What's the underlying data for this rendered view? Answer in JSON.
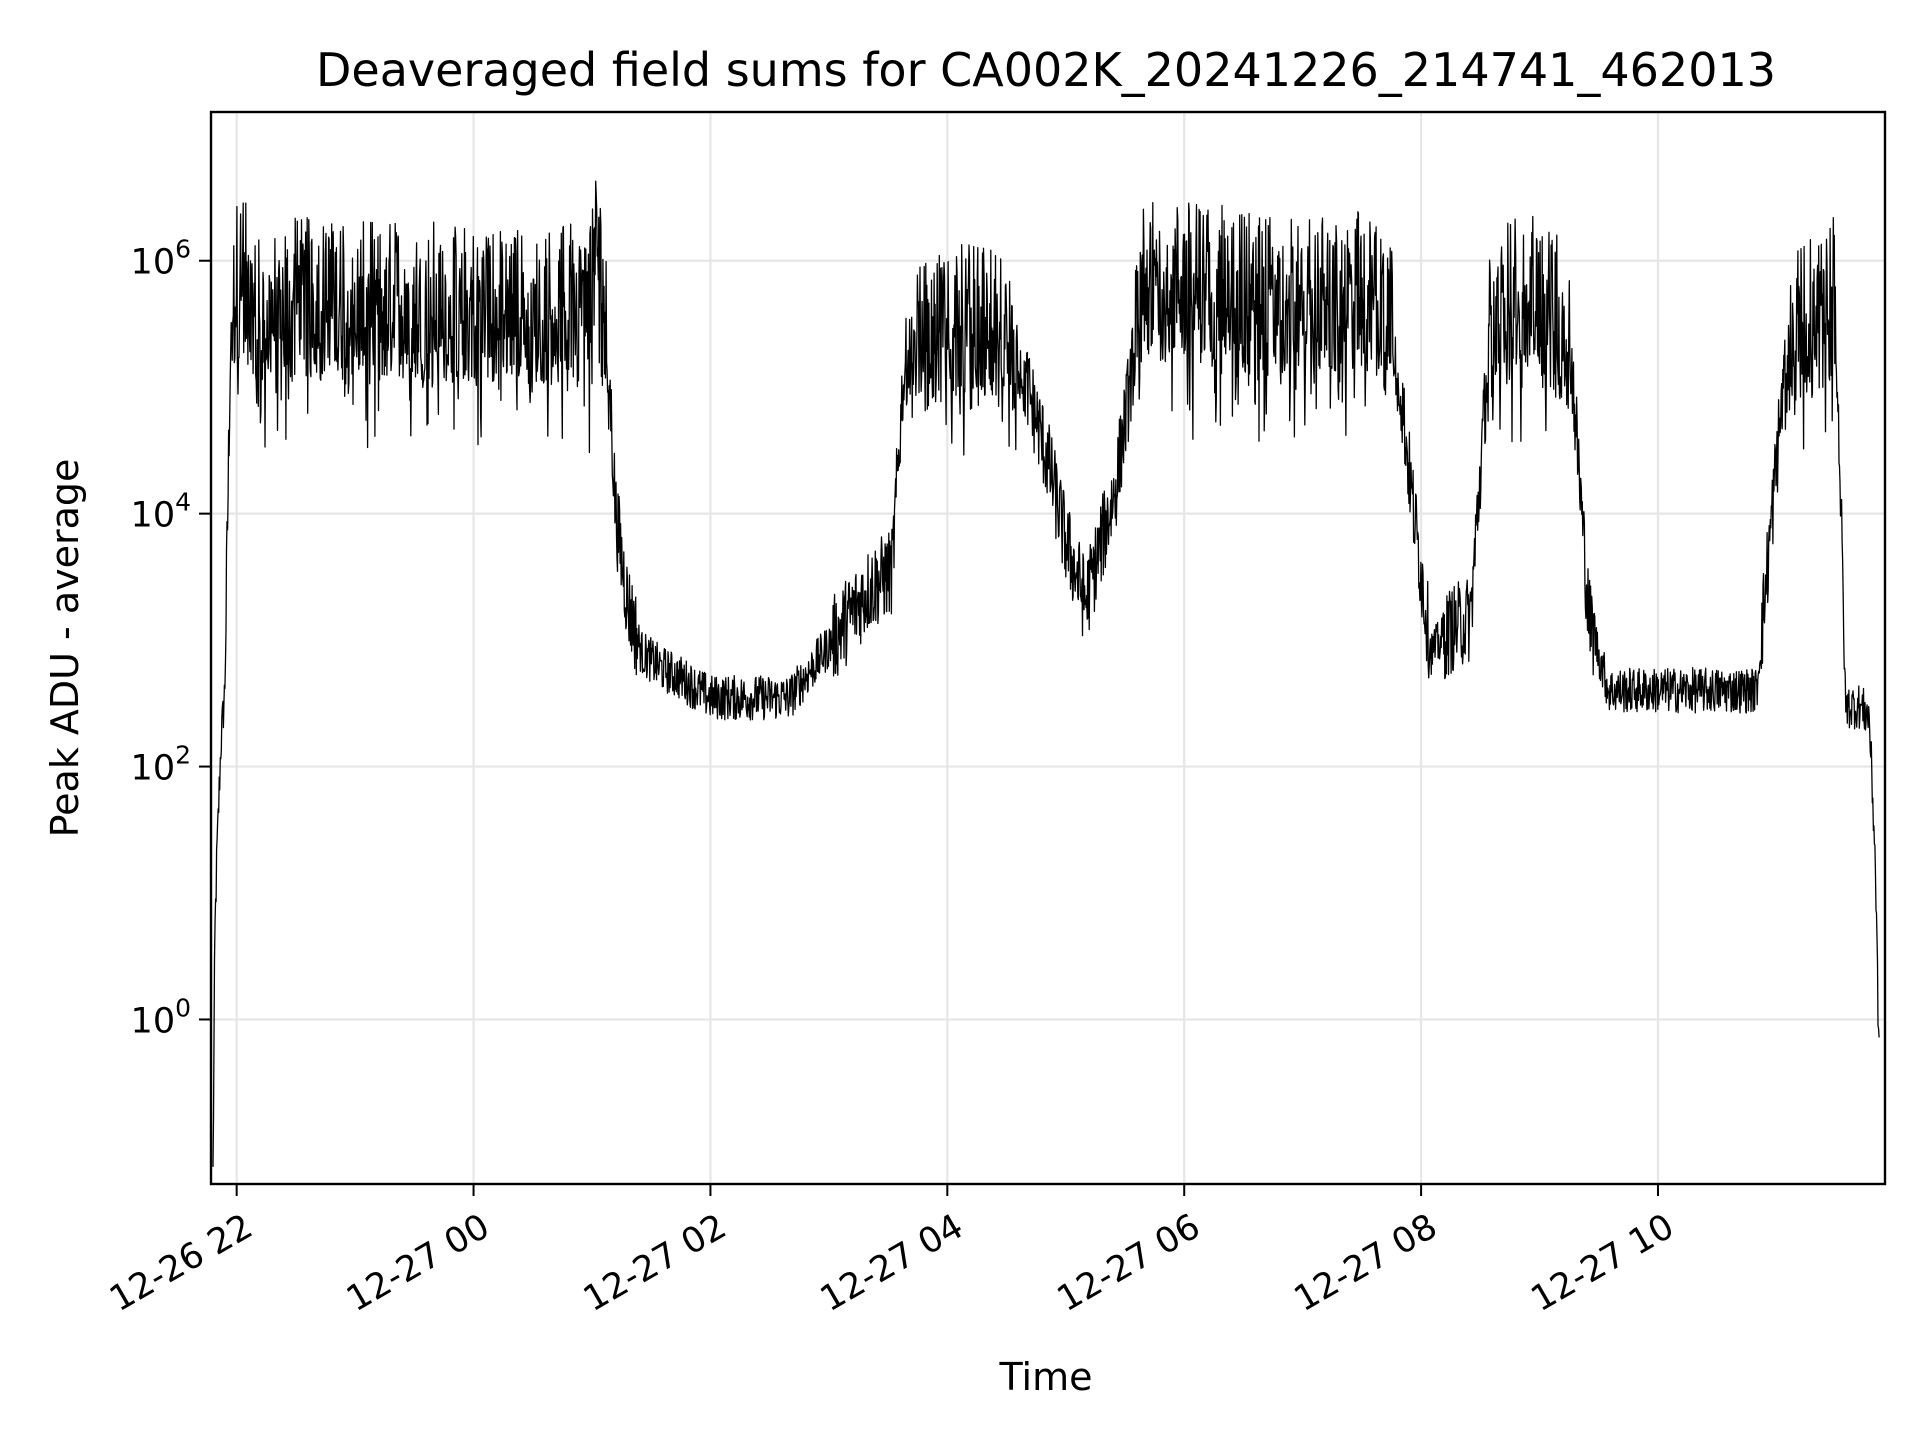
{
  "chart_data": {
    "type": "line",
    "title": "Deaveraged field sums for CA002K_20241226_214741_462013",
    "xlabel": "Time",
    "ylabel": "Peak ADU - average",
    "yscale": "log",
    "grid": true,
    "line_color": "#000000",
    "xlim": [
      "2024-12-26 21:47",
      "2024-12-27 11:55"
    ],
    "ylim": [
      0.05,
      15000000
    ],
    "x_ticks": [
      {
        "value": "2024-12-26 22:00",
        "label": "12-26 22"
      },
      {
        "value": "2024-12-27 00:00",
        "label": "12-27 00"
      },
      {
        "value": "2024-12-27 02:00",
        "label": "12-27 02"
      },
      {
        "value": "2024-12-27 04:00",
        "label": "12-27 04"
      },
      {
        "value": "2024-12-27 06:00",
        "label": "12-27 06"
      },
      {
        "value": "2024-12-27 08:00",
        "label": "12-27 08"
      },
      {
        "value": "2024-12-27 10:00",
        "label": "12-27 10"
      }
    ],
    "y_ticks": [
      {
        "value": 1,
        "base": "10",
        "exp": "0"
      },
      {
        "value": 100,
        "base": "10",
        "exp": "2"
      },
      {
        "value": 10000,
        "base": "10",
        "exp": "4"
      },
      {
        "value": 1000000,
        "base": "10",
        "exp": "6"
      }
    ],
    "series": [
      {
        "x": [
          "2024-12-26 21:48",
          "2024-12-26 21:49",
          "2024-12-26 21:50",
          "2024-12-26 21:52",
          "2024-12-26 21:54",
          "2024-12-26 21:57",
          "2024-12-26 22:00",
          "2024-12-26 22:03",
          "2024-12-26 22:07",
          "2024-12-26 22:12",
          "2024-12-26 22:18",
          "2024-12-26 22:24",
          "2024-12-26 22:30",
          "2024-12-26 22:45",
          "2024-12-26 23:00",
          "2024-12-26 23:30",
          "2024-12-27 00:00",
          "2024-12-27 00:30",
          "2024-12-27 00:55",
          "2024-12-27 01:03",
          "2024-12-27 01:07",
          "2024-12-27 01:12",
          "2024-12-27 01:18",
          "2024-12-27 01:25",
          "2024-12-27 01:35",
          "2024-12-27 01:45",
          "2024-12-27 02:00",
          "2024-12-27 02:20",
          "2024-12-27 02:40",
          "2024-12-27 03:00",
          "2024-12-27 03:20",
          "2024-12-27 03:32",
          "2024-12-27 03:38",
          "2024-12-27 03:50",
          "2024-12-27 04:05",
          "2024-12-27 04:20",
          "2024-12-27 04:35",
          "2024-12-27 04:50",
          "2024-12-27 05:00",
          "2024-12-27 05:10",
          "2024-12-27 05:25",
          "2024-12-27 05:40",
          "2024-12-27 06:00",
          "2024-12-27 06:30",
          "2024-12-27 07:00",
          "2024-12-27 07:30",
          "2024-12-27 07:45",
          "2024-12-27 07:55",
          "2024-12-27 08:05",
          "2024-12-27 08:15",
          "2024-12-27 08:25",
          "2024-12-27 08:35",
          "2024-12-27 08:50",
          "2024-12-27 09:05",
          "2024-12-27 09:15",
          "2024-12-27 09:25",
          "2024-12-27 09:35",
          "2024-12-27 09:45",
          "2024-12-27 09:50",
          "2024-12-27 10:00",
          "2024-12-27 10:10",
          "2024-12-27 10:18",
          "2024-12-27 10:30",
          "2024-12-27 10:40",
          "2024-12-27 10:50",
          "2024-12-27 11:05",
          "2024-12-27 11:15",
          "2024-12-27 11:20",
          "2024-12-27 11:25",
          "2024-12-27 11:30",
          "2024-12-27 11:35",
          "2024-12-27 11:42",
          "2024-12-27 11:47",
          "2024-12-27 11:50",
          "2024-12-27 11:52"
        ],
        "y": [
          0.06,
          5,
          20,
          150,
          400,
          300000,
          700000,
          900000,
          400000,
          350000,
          400000,
          450000,
          500000,
          500000,
          450000,
          500000,
          450000,
          450000,
          450000,
          1500000,
          500000,
          10000,
          2000,
          800,
          600,
          500,
          350,
          350,
          350,
          900,
          2500,
          3500,
          150000,
          250000,
          350000,
          300000,
          200000,
          30000,
          6000,
          2000,
          15000,
          700000,
          700000,
          600000,
          500000,
          600000,
          500000,
          15000,
          800,
          1200,
          1500,
          300000,
          600000,
          400000,
          300000,
          1500,
          400,
          400,
          400,
          400,
          400,
          400,
          400,
          400,
          400,
          200000,
          350000,
          350000,
          400000,
          600000,
          300,
          300,
          250,
          20,
          0.5
        ]
      }
    ]
  }
}
